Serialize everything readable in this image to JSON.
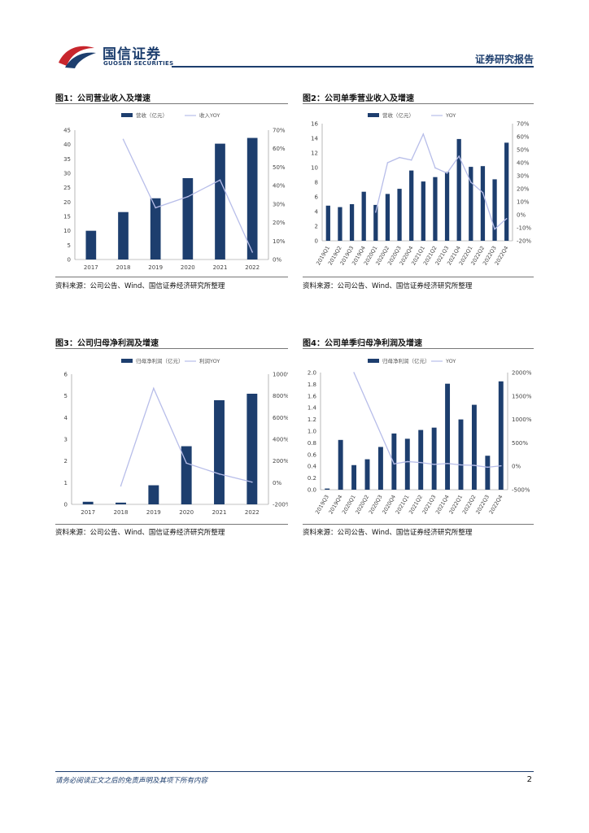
{
  "header": {
    "logo_cn": "国信证券",
    "logo_en": "GUOSEN SECURITIES",
    "report_type": "证券研究报告"
  },
  "figures": [
    {
      "title": "图1：公司营业收入及增速",
      "source": "资料来源：公司公告、Wind、国信证券经济研究所整理"
    },
    {
      "title": "图2：公司单季营业收入及增速",
      "source": "资料来源：公司公告、Wind、国信证券经济研究所整理"
    },
    {
      "title": "图3：公司归母净利润及增速",
      "source": "资料来源：公司公告、Wind、国信证券经济研究所整理"
    },
    {
      "title": "图4：公司单季归母净利润及增速",
      "source": "资料来源：公司公告、Wind、国信证券经济研究所整理"
    }
  ],
  "footer": {
    "disclaimer": "请务必阅读正文之后的免责声明及其项下所有内容",
    "page": "2"
  },
  "colors": {
    "bar": "#1d3e6e",
    "line": "#b7bde9",
    "brand_red": "#c8262d"
  },
  "chart_data": [
    {
      "type": "bar",
      "categories": [
        "2017",
        "2018",
        "2019",
        "2020",
        "2021",
        "2022"
      ],
      "series": [
        {
          "name": "营收（亿元）",
          "axis": "left",
          "kind": "bar",
          "values": [
            10.0,
            16.5,
            21.3,
            28.3,
            40.3,
            42.3
          ]
        },
        {
          "name": "收入YOY",
          "axis": "right",
          "kind": "line",
          "values": [
            null,
            65,
            28,
            34,
            43,
            4
          ]
        }
      ],
      "left_axis": {
        "min": 0,
        "max": 45,
        "ticks": [
          "0",
          "5",
          "10",
          "15",
          "20",
          "25",
          "30",
          "35",
          "40",
          "45"
        ]
      },
      "right_axis": {
        "min": 0,
        "max": 70,
        "ticks": [
          "0%",
          "10%",
          "20%",
          "30%",
          "40%",
          "50%",
          "60%",
          "70%"
        ]
      },
      "legend_position": "top",
      "grid": false
    },
    {
      "type": "bar",
      "categories": [
        "2019Q1",
        "2019Q2",
        "2019Q3",
        "2019Q4",
        "2020Q1",
        "2020Q2",
        "2020Q3",
        "2020Q4",
        "2021Q1",
        "2021Q2",
        "2021Q3",
        "2021Q4",
        "2022Q1",
        "2022Q2",
        "2022Q3",
        "2022Q4"
      ],
      "series": [
        {
          "name": "营收（亿元）",
          "axis": "left",
          "kind": "bar",
          "values": [
            4.8,
            4.6,
            5.0,
            6.7,
            4.9,
            6.4,
            7.1,
            9.6,
            8.1,
            8.7,
            9.4,
            13.9,
            10.1,
            10.2,
            8.4,
            13.4
          ]
        },
        {
          "name": "YOY",
          "axis": "right",
          "kind": "line",
          "values": [
            null,
            null,
            null,
            null,
            2,
            40,
            44,
            42,
            62,
            36,
            32,
            45,
            25,
            17,
            -11,
            -3
          ]
        }
      ],
      "left_axis": {
        "min": 0,
        "max": 16,
        "ticks": [
          "0",
          "2",
          "4",
          "6",
          "8",
          "10",
          "12",
          "14",
          "16"
        ]
      },
      "right_axis": {
        "min": -20,
        "max": 70,
        "ticks": [
          "-20%",
          "-10%",
          "0%",
          "10%",
          "20%",
          "30%",
          "40%",
          "50%",
          "60%",
          "70%"
        ]
      },
      "legend_position": "top",
      "grid": false
    },
    {
      "type": "bar",
      "categories": [
        "2017",
        "2018",
        "2019",
        "2020",
        "2021",
        "2022"
      ],
      "series": [
        {
          "name": "归母净利润（亿元）",
          "axis": "left",
          "kind": "bar",
          "values": [
            0.12,
            0.08,
            0.88,
            2.68,
            4.8,
            5.1
          ]
        },
        {
          "name": "利润YOY",
          "axis": "right",
          "kind": "line",
          "values": [
            null,
            -30,
            870,
            180,
            80,
            5
          ]
        }
      ],
      "left_axis": {
        "min": 0,
        "max": 6,
        "ticks": [
          "0",
          "1",
          "2",
          "3",
          "4",
          "5",
          "6"
        ]
      },
      "right_axis": {
        "min": -200,
        "max": 1000,
        "ticks": [
          "-200%",
          "0%",
          "200%",
          "400%",
          "600%",
          "800%",
          "1000%"
        ]
      },
      "legend_position": "top",
      "grid": false
    },
    {
      "type": "bar",
      "categories": [
        "2019Q3",
        "2019Q4",
        "2020Q1",
        "2020Q2",
        "2020Q3",
        "2020Q4",
        "2021Q1",
        "2021Q2",
        "2021Q3",
        "2021Q4",
        "2022Q1",
        "2022Q2",
        "2022Q3",
        "2022Q4"
      ],
      "series": [
        {
          "name": "归母净利润（亿元）",
          "axis": "left",
          "kind": "bar",
          "values": [
            0.02,
            0.85,
            0.42,
            0.52,
            0.73,
            0.96,
            0.87,
            1.02,
            1.06,
            1.81,
            1.2,
            1.45,
            0.58,
            1.85
          ]
        },
        {
          "name": "YOY",
          "axis": "right",
          "kind": "line",
          "values": [
            null,
            null,
            2000,
            null,
            null,
            50,
            100,
            80,
            40,
            60,
            30,
            20,
            -20,
            10
          ]
        }
      ],
      "left_axis": {
        "min": 0,
        "max": 2,
        "ticks": [
          "0.0",
          "0.2",
          "0.4",
          "0.6",
          "0.8",
          "1.0",
          "1.2",
          "1.4",
          "1.6",
          "1.8",
          "2.0"
        ]
      },
      "right_axis": {
        "min": -500,
        "max": 2000,
        "ticks": [
          "-500%",
          "0%",
          "500%",
          "1000%",
          "1500%",
          "2000%"
        ]
      },
      "legend_position": "top",
      "grid": false
    }
  ]
}
